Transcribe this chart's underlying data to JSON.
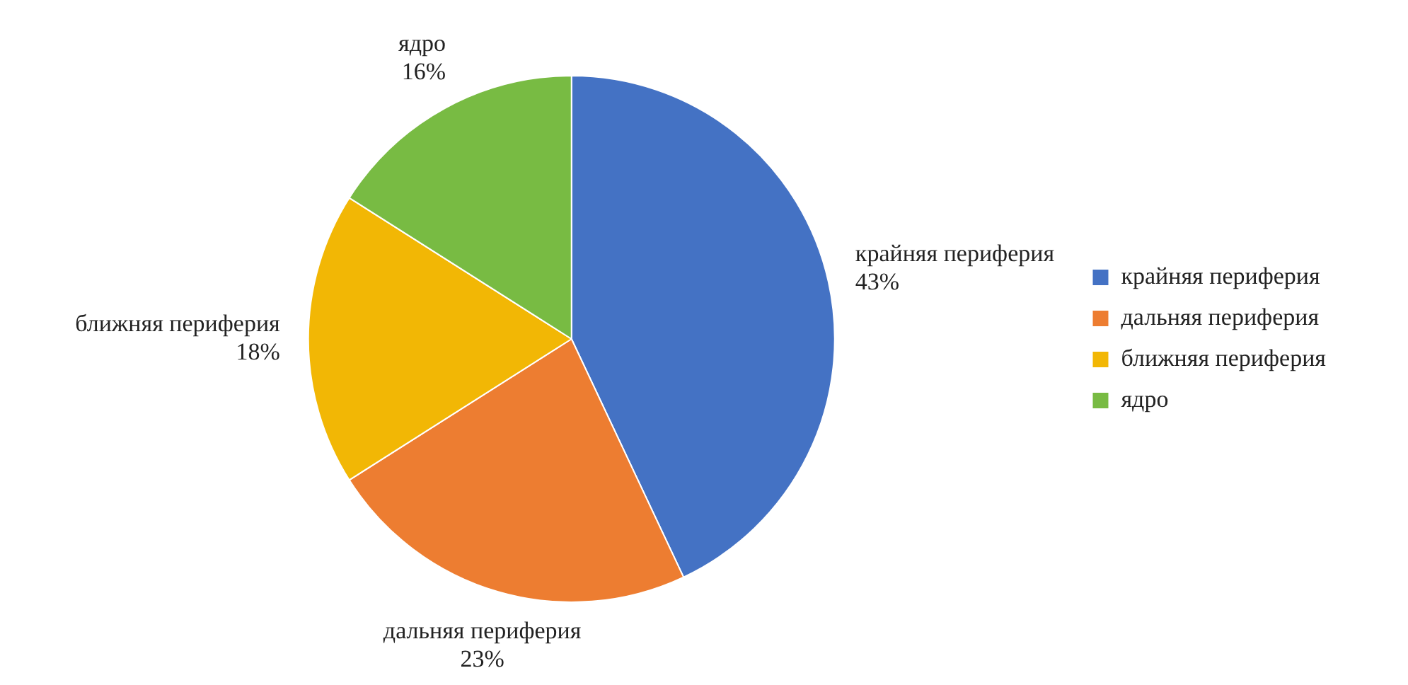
{
  "chart_data": {
    "type": "pie",
    "categories": [
      "крайняя периферия",
      "дальняя периферия",
      "ближняя периферия",
      "ядро"
    ],
    "values": [
      43,
      23,
      18,
      16
    ],
    "value_labels": [
      "43%",
      "23%",
      "18%",
      "16%"
    ],
    "colors": [
      "#4472c4",
      "#ed7d31",
      "#f2b705",
      "#78bb43"
    ],
    "legend": "right"
  }
}
